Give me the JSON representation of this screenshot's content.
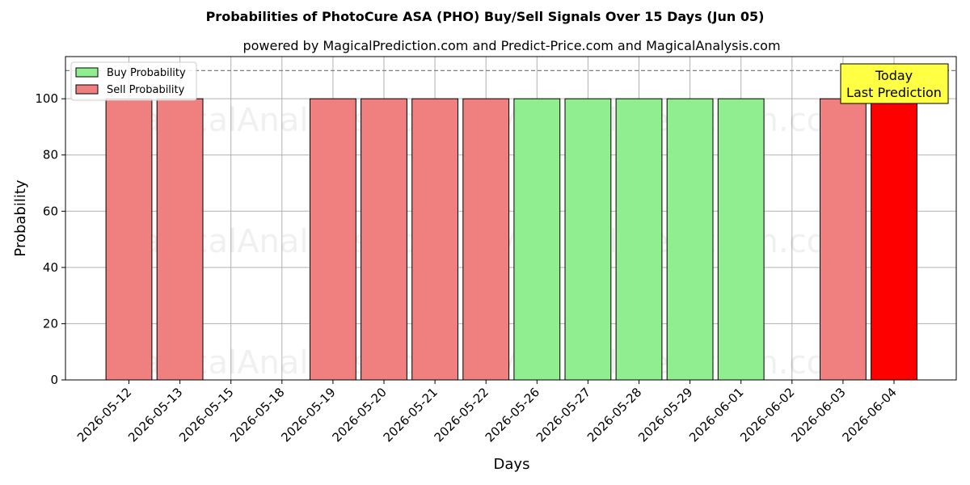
{
  "chart_data": {
    "type": "bar",
    "title": "Probabilities of PhotoCure ASA (PHO) Buy/Sell Signals Over 15 Days (Jun 05)",
    "subtitle": "powered by MagicalPrediction.com and Predict-Price.com and MagicalAnalysis.com",
    "xlabel": "Days",
    "ylabel": "Probability",
    "ylim": [
      0,
      115
    ],
    "yticks": [
      0,
      20,
      40,
      60,
      80,
      100
    ],
    "grid": true,
    "legend_placement": "top-left",
    "reference_line": 110,
    "categories": [
      "2026-05-12",
      "2026-05-13",
      "2026-05-15",
      "2026-05-18",
      "2026-05-19",
      "2026-05-20",
      "2026-05-21",
      "2026-05-22",
      "2026-05-26",
      "2026-05-27",
      "2026-05-28",
      "2026-05-29",
      "2026-06-01",
      "2026-06-02",
      "2026-06-03",
      "2026-06-04"
    ],
    "series": [
      {
        "name": "Buy Probability",
        "color": "#90ee90",
        "values": [
          0,
          0,
          0,
          0,
          0,
          0,
          0,
          0,
          100,
          100,
          100,
          100,
          100,
          0,
          0,
          0
        ]
      },
      {
        "name": "Sell Probability",
        "color": "#f08080",
        "values": [
          100,
          100,
          0,
          0,
          100,
          100,
          100,
          100,
          0,
          0,
          0,
          0,
          0,
          0,
          100,
          100
        ]
      }
    ],
    "highlight": {
      "index": 15,
      "color": "#ff0000"
    },
    "annotation": {
      "lines": [
        "Today",
        "Last Prediction"
      ],
      "background": "#ffff44"
    },
    "watermarks": [
      "MagicalAnalysis.com",
      "MagicalPrediction.com"
    ]
  }
}
